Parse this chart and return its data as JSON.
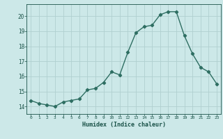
{
  "x": [
    0,
    1,
    2,
    3,
    4,
    5,
    6,
    7,
    8,
    9,
    10,
    11,
    12,
    13,
    14,
    15,
    16,
    17,
    18,
    19,
    20,
    21,
    22,
    23
  ],
  "y": [
    14.4,
    14.2,
    14.1,
    14.0,
    14.3,
    14.4,
    14.5,
    15.1,
    15.2,
    15.6,
    16.3,
    16.1,
    17.6,
    18.9,
    19.3,
    19.4,
    20.1,
    20.3,
    20.3,
    18.7,
    17.5,
    16.6,
    16.3,
    15.5
  ],
  "xlabel": "Humidex (Indice chaleur)",
  "xlim": [
    -0.5,
    23.5
  ],
  "ylim": [
    13.5,
    20.8
  ],
  "yticks": [
    14,
    15,
    16,
    17,
    18,
    19,
    20
  ],
  "xticks": [
    0,
    1,
    2,
    3,
    4,
    5,
    6,
    7,
    8,
    9,
    10,
    11,
    12,
    13,
    14,
    15,
    16,
    17,
    18,
    19,
    20,
    21,
    22,
    23
  ],
  "xtick_labels": [
    "0",
    "1",
    "2",
    "3",
    "4",
    "5",
    "6",
    "7",
    "8",
    "9",
    "10",
    "11",
    "12",
    "13",
    "14",
    "15",
    "16",
    "17",
    "18",
    "19",
    "20",
    "21",
    "22",
    "23"
  ],
  "line_color": "#2e6e62",
  "marker": "D",
  "marker_size": 2.2,
  "line_width": 1.0,
  "bg_color": "#cce8e8",
  "grid_color": "#b0d0d0",
  "label_color": "#1a5248",
  "tick_color": "#1a5248",
  "axis_color": "#1a5248"
}
